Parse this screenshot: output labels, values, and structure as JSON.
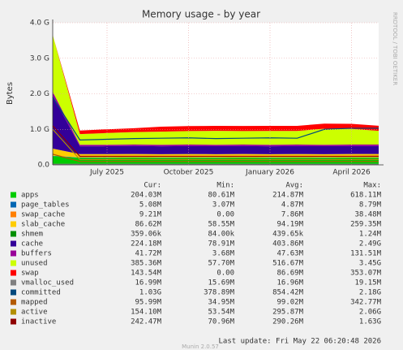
{
  "chart_data": {
    "type": "area",
    "title": "Memory usage - by year",
    "ylabel": "Bytes",
    "side_text": "RRDTOOL / TOBI OETIKER",
    "x": [
      "2025-05",
      "2025-06",
      "2025-07",
      "2025-08",
      "2025-09",
      "2025-10",
      "2025-11",
      "2025-12",
      "2026-01",
      "2026-02",
      "2026-03",
      "2026-04",
      "2026-05"
    ],
    "xticks": [
      {
        "value": "2025-07",
        "label": "July 2025"
      },
      {
        "value": "2025-10",
        "label": "October 2025"
      },
      {
        "value": "2026-01",
        "label": "January 2026"
      },
      {
        "value": "2026-04",
        "label": "April 2026"
      }
    ],
    "ylim": [
      0,
      4000000000
    ],
    "yticks": [
      {
        "value": 0,
        "label": "0.0"
      },
      {
        "value": 1000000000,
        "label": "1.0 G"
      },
      {
        "value": 2000000000,
        "label": "2.0 G"
      },
      {
        "value": 3000000000,
        "label": "3.0 G"
      },
      {
        "value": 4000000000,
        "label": "4.0 G"
      }
    ],
    "grid": true,
    "stacked": true,
    "legend_headers": [
      "Cur:",
      "Min:",
      "Avg:",
      "Max:"
    ],
    "series": [
      {
        "name": "apps",
        "color": "#00cc00",
        "kind": "area",
        "values": [
          250000000,
          200000000,
          200000000,
          205000000,
          200000000,
          204000000,
          200000000,
          205000000,
          200000000,
          204000000,
          200000000,
          205000000,
          204030000
        ],
        "cur": "204.03M",
        "min": "80.61M",
        "avg": "214.87M",
        "max": "618.11M"
      },
      {
        "name": "page_tables",
        "color": "#0066b3",
        "kind": "area",
        "values": [
          6000000,
          5000000,
          5000000,
          5000000,
          5000000,
          5000000,
          5000000,
          5000000,
          5000000,
          5000000,
          5000000,
          5000000,
          5080000
        ],
        "cur": "5.08M",
        "min": "3.07M",
        "avg": "4.87M",
        "max": "8.79M"
      },
      {
        "name": "swap_cache",
        "color": "#ff8000",
        "kind": "area",
        "values": [
          0,
          8000000,
          9000000,
          9000000,
          9000000,
          9000000,
          9000000,
          9000000,
          9000000,
          9000000,
          9000000,
          9000000,
          9210000
        ],
        "cur": "9.21M",
        "min": "0.00",
        "avg": "7.86M",
        "max": "38.48M"
      },
      {
        "name": "slab_cache",
        "color": "#ffcc00",
        "kind": "area",
        "values": [
          200000000,
          90000000,
          88000000,
          87000000,
          87000000,
          86000000,
          87000000,
          86000000,
          87000000,
          86000000,
          87000000,
          86000000,
          86620000
        ],
        "cur": "86.62M",
        "min": "58.55M",
        "avg": "94.19M",
        "max": "259.35M"
      },
      {
        "name": "shmem",
        "color": "#008f00",
        "kind": "area",
        "values": [
          800000,
          360000,
          360000,
          360000,
          360000,
          360000,
          360000,
          360000,
          360000,
          360000,
          360000,
          360000,
          359060
        ],
        "cur": "359.06k",
        "min": "84.00k",
        "avg": "439.65k",
        "max": "1.24M"
      },
      {
        "name": "cache",
        "color": "#330099",
        "kind": "area",
        "values": [
          1500000000,
          220000000,
          222000000,
          224000000,
          222000000,
          224000000,
          223000000,
          224000000,
          222000000,
          224000000,
          223000000,
          224000000,
          224180000
        ],
        "cur": "224.18M",
        "min": "78.91M",
        "avg": "403.86M",
        "max": "2.49G"
      },
      {
        "name": "buffers",
        "color": "#990099",
        "kind": "area",
        "values": [
          100000000,
          42000000,
          42000000,
          42000000,
          42000000,
          42000000,
          42000000,
          42000000,
          42000000,
          42000000,
          42000000,
          42000000,
          41720000
        ],
        "cur": "41.72M",
        "min": "3.68M",
        "avg": "47.63M",
        "max": "131.51M"
      },
      {
        "name": "unused",
        "color": "#ccff00",
        "kind": "area",
        "values": [
          1600000000,
          300000000,
          330000000,
          350000000,
          370000000,
          380000000,
          390000000,
          380000000,
          390000000,
          385000000,
          450000000,
          440000000,
          385360000
        ],
        "cur": "385.36M",
        "min": "57.70M",
        "avg": "516.67M",
        "max": "3.45G"
      },
      {
        "name": "swap",
        "color": "#ff0000",
        "kind": "area",
        "values": [
          0,
          100000000,
          105000000,
          110000000,
          140000000,
          140000000,
          141000000,
          142000000,
          142000000,
          143000000,
          143000000,
          143000000,
          143540000
        ],
        "cur": "143.54M",
        "min": "0.00",
        "avg": "86.69M",
        "max": "353.07M"
      },
      {
        "name": "vmalloc_used",
        "color": "#808080",
        "kind": "line",
        "values": [
          17000000,
          17000000,
          17000000,
          17000000,
          17000000,
          17000000,
          17000000,
          17000000,
          17000000,
          17000000,
          17000000,
          17000000,
          16990000
        ],
        "cur": "16.99M",
        "min": "15.69M",
        "avg": "16.96M",
        "max": "19.15M"
      },
      {
        "name": "committed",
        "color": "#00487d",
        "kind": "line",
        "values": [
          1900000000,
          700000000,
          720000000,
          740000000,
          750000000,
          760000000,
          740000000,
          750000000,
          760000000,
          750000000,
          1000000000,
          1030000000,
          1030000000
        ],
        "cur": "1.03G",
        "min": "378.89M",
        "avg": "854.42M",
        "max": "2.18G"
      },
      {
        "name": "mapped",
        "color": "#b35a00",
        "kind": "line",
        "values": [
          300000000,
          96000000,
          96000000,
          96000000,
          96000000,
          96000000,
          96000000,
          96000000,
          96000000,
          96000000,
          96000000,
          96000000,
          95990000
        ],
        "cur": "95.99M",
        "min": "34.95M",
        "avg": "99.02M",
        "max": "342.77M"
      },
      {
        "name": "active",
        "color": "#b38f00",
        "kind": "line",
        "values": [
          1000000000,
          150000000,
          152000000,
          154000000,
          153000000,
          154000000,
          153000000,
          154000000,
          153000000,
          154000000,
          153000000,
          154000000,
          154100000
        ],
        "cur": "154.10M",
        "min": "53.54M",
        "avg": "295.87M",
        "max": "2.06G"
      },
      {
        "name": "inactive",
        "color": "#8f0000",
        "kind": "line",
        "values": [
          1100000000,
          240000000,
          241000000,
          242000000,
          242000000,
          242000000,
          242000000,
          242000000,
          242000000,
          242000000,
          242000000,
          242000000,
          242470000
        ],
        "cur": "242.47M",
        "min": "70.96M",
        "avg": "290.26M",
        "max": "1.63G"
      }
    ],
    "last_update": "Last update: Fri May 22 06:20:48 2026",
    "footer": "Munin 2.0.57"
  }
}
